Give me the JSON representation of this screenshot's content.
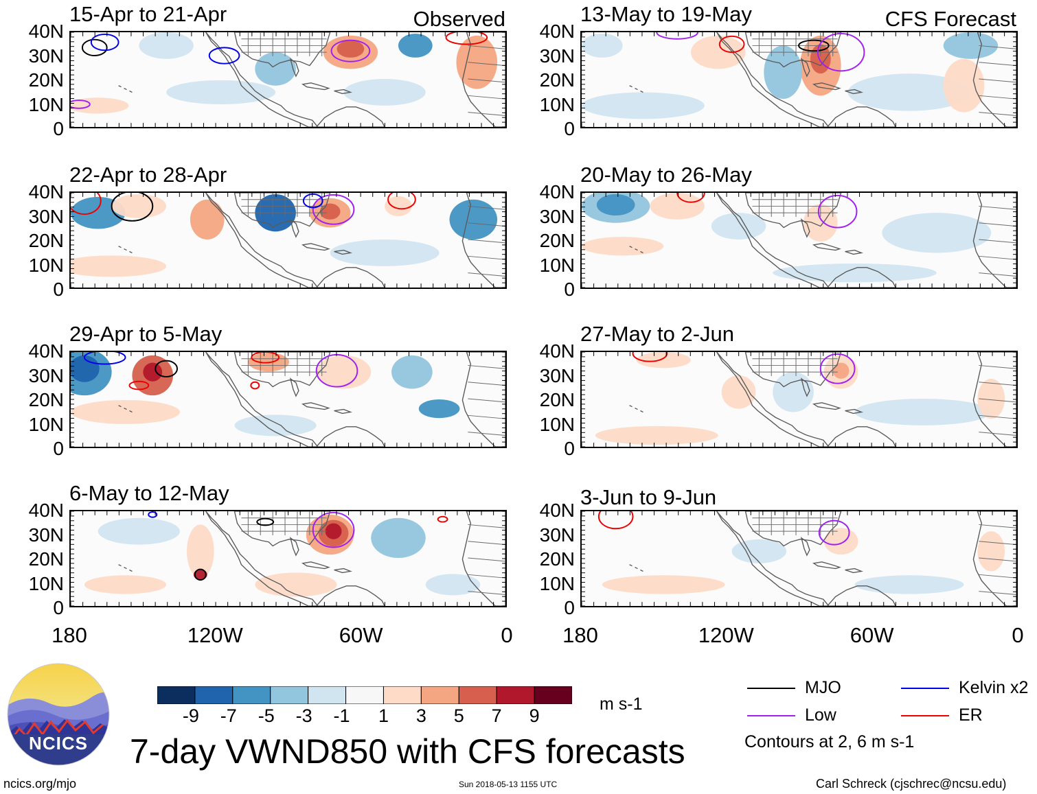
{
  "panels": [
    {
      "title": "15-Apr to 21-Apr",
      "corner": "Observed"
    },
    {
      "title": "13-May to 19-May",
      "corner": "CFS Forecast"
    },
    {
      "title": "22-Apr to 28-Apr",
      "corner": ""
    },
    {
      "title": "20-May to 26-May",
      "corner": ""
    },
    {
      "title": "29-Apr to 5-May",
      "corner": ""
    },
    {
      "title": "27-May to 2-Jun",
      "corner": ""
    },
    {
      "title": "6-May to 12-May",
      "corner": ""
    },
    {
      "title": "3-Jun to 9-Jun",
      "corner": ""
    }
  ],
  "lat_labels": [
    "40N",
    "30N",
    "20N",
    "10N",
    "0"
  ],
  "lon_labels": [
    "180",
    "120W",
    "60W",
    "0"
  ],
  "colorbar": {
    "colors": [
      "#0b2e5e",
      "#1f64ad",
      "#4393c3",
      "#92c5de",
      "#d1e5f0",
      "#f7f7f7",
      "#fddbc7",
      "#f4a582",
      "#d6604d",
      "#b2182b",
      "#67001f"
    ],
    "labels": [
      "-9",
      "-7",
      "-5",
      "-3",
      "-1",
      "1",
      "3",
      "5",
      "7",
      "9"
    ],
    "units": "m s-1"
  },
  "legend": {
    "items": [
      {
        "label": "MJO",
        "color": "#000000"
      },
      {
        "label": "Kelvin x2",
        "color": "#0000ee"
      },
      {
        "label": "Low",
        "color": "#a020f0"
      },
      {
        "label": "ER",
        "color": "#ee0000"
      }
    ],
    "note": "Contours at 2, 6 m s-1"
  },
  "logo_text": "NCICS",
  "main_title": "7-day VWND850 with CFS forecasts",
  "footer": {
    "left": "ncics.org/mjo",
    "center": "Sun 2018-05-13 1155 UTC",
    "right": "Carl Schreck (cjschrec@ncsu.edu)"
  }
}
